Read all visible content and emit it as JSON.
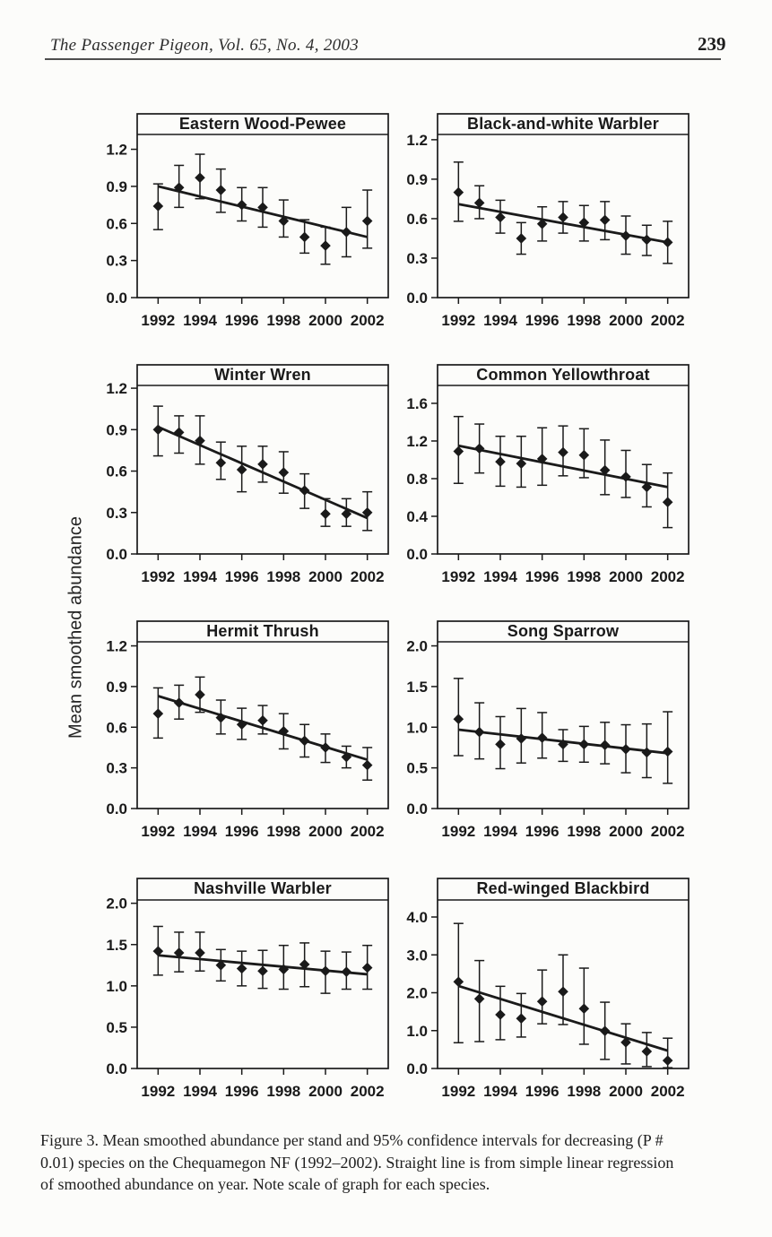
{
  "header": {
    "journal": "The Passenger Pigeon, Vol. 65, No. 4, 2003",
    "page_number": "239"
  },
  "y_axis_label": "Mean smoothed abundance",
  "caption": {
    "lines": [
      "Figure 3. Mean smoothed abundance per stand and 95% confidence intervals for decreasing (P #",
      "0.01) species on the Chequamegon NF (1992–2002). Straight line is from simple linear regression",
      "of smoothed abundance on year. Note scale of graph for each species."
    ]
  },
  "ink_color": "#1a1a1a",
  "x_axis": {
    "xlim": [
      1991,
      2003
    ],
    "ticks": [
      {
        "v": 1992,
        "label": "1992"
      },
      {
        "v": 1994,
        "label": "1994"
      },
      {
        "v": 1996,
        "label": "1996"
      },
      {
        "v": 1998,
        "label": "1998"
      },
      {
        "v": 2000,
        "label": "2000"
      },
      {
        "v": 2002,
        "label": "2002"
      }
    ]
  },
  "chart_data": [
    {
      "type": "scatter",
      "title": "Eastern Wood-Pewee",
      "x": [
        1992,
        1993,
        1994,
        1995,
        1996,
        1997,
        1998,
        1999,
        2000,
        2001,
        2002
      ],
      "values": [
        0.74,
        0.89,
        0.97,
        0.87,
        0.75,
        0.73,
        0.62,
        0.49,
        0.42,
        0.53,
        0.62
      ],
      "ci_low": [
        0.55,
        0.73,
        0.8,
        0.69,
        0.62,
        0.57,
        0.49,
        0.36,
        0.27,
        0.33,
        0.4
      ],
      "ci_high": [
        0.92,
        1.07,
        1.16,
        1.04,
        0.89,
        0.89,
        0.79,
        0.63,
        0.57,
        0.73,
        0.87
      ],
      "trend": {
        "x": [
          1992,
          2002
        ],
        "y": [
          0.9,
          0.49
        ]
      },
      "ylim": [
        0,
        1.32
      ],
      "y_ticks": [
        {
          "v": 0,
          "label": "0.0"
        },
        {
          "v": 0.3,
          "label": "0.3"
        },
        {
          "v": 0.6,
          "label": "0.6"
        },
        {
          "v": 0.9,
          "label": "0.9"
        },
        {
          "v": 1.2,
          "label": "1.2"
        }
      ]
    },
    {
      "type": "scatter",
      "title": "Black-and-white Warbler",
      "x": [
        1992,
        1993,
        1994,
        1995,
        1996,
        1997,
        1998,
        1999,
        2000,
        2001,
        2002
      ],
      "values": [
        0.8,
        0.72,
        0.61,
        0.45,
        0.56,
        0.61,
        0.57,
        0.59,
        0.47,
        0.44,
        0.42
      ],
      "ci_low": [
        0.58,
        0.6,
        0.49,
        0.33,
        0.43,
        0.49,
        0.43,
        0.44,
        0.33,
        0.32,
        0.26
      ],
      "ci_high": [
        1.03,
        0.85,
        0.74,
        0.57,
        0.69,
        0.73,
        0.7,
        0.73,
        0.62,
        0.55,
        0.58
      ],
      "trend": {
        "x": [
          1992,
          2002
        ],
        "y": [
          0.71,
          0.42
        ]
      },
      "ylim": [
        0,
        1.24
      ],
      "y_ticks": [
        {
          "v": 0,
          "label": "0.0"
        },
        {
          "v": 0.3,
          "label": "0.3"
        },
        {
          "v": 0.6,
          "label": "0.6"
        },
        {
          "v": 0.9,
          "label": "0.9"
        },
        {
          "v": 1.2,
          "label": "1.2"
        }
      ]
    },
    {
      "type": "scatter",
      "title": "Winter Wren",
      "x": [
        1992,
        1993,
        1994,
        1995,
        1996,
        1997,
        1998,
        1999,
        2000,
        2001,
        2002
      ],
      "values": [
        0.9,
        0.88,
        0.82,
        0.66,
        0.61,
        0.65,
        0.59,
        0.46,
        0.29,
        0.29,
        0.3
      ],
      "ci_low": [
        0.71,
        0.73,
        0.65,
        0.54,
        0.45,
        0.52,
        0.44,
        0.33,
        0.2,
        0.2,
        0.17
      ],
      "ci_high": [
        1.07,
        1.0,
        1.0,
        0.81,
        0.78,
        0.78,
        0.74,
        0.58,
        0.4,
        0.4,
        0.45
      ],
      "trend": {
        "x": [
          1992,
          2002
        ],
        "y": [
          0.92,
          0.26
        ]
      },
      "ylim": [
        0,
        1.22
      ],
      "y_ticks": [
        {
          "v": 0,
          "label": "0.0"
        },
        {
          "v": 0.3,
          "label": "0.3"
        },
        {
          "v": 0.6,
          "label": "0.6"
        },
        {
          "v": 0.9,
          "label": "0.9"
        },
        {
          "v": 1.2,
          "label": "1.2"
        }
      ]
    },
    {
      "type": "scatter",
      "title": "Common Yellowthroat",
      "x": [
        1992,
        1993,
        1994,
        1995,
        1996,
        1997,
        1998,
        1999,
        2000,
        2001,
        2002
      ],
      "values": [
        1.09,
        1.12,
        0.98,
        0.96,
        1.01,
        1.08,
        1.05,
        0.89,
        0.82,
        0.71,
        0.55
      ],
      "ci_low": [
        0.75,
        0.86,
        0.72,
        0.71,
        0.73,
        0.83,
        0.81,
        0.63,
        0.6,
        0.5,
        0.28
      ],
      "ci_high": [
        1.46,
        1.38,
        1.25,
        1.25,
        1.34,
        1.36,
        1.33,
        1.21,
        1.1,
        0.95,
        0.86
      ],
      "trend": {
        "x": [
          1992,
          2002
        ],
        "y": [
          1.15,
          0.71
        ]
      },
      "ylim": [
        0,
        1.79
      ],
      "y_ticks": [
        {
          "v": 0,
          "label": "0.0"
        },
        {
          "v": 0.4,
          "label": "0.4"
        },
        {
          "v": 0.8,
          "label": "0.8"
        },
        {
          "v": 1.2,
          "label": "1.2"
        },
        {
          "v": 1.6,
          "label": "1.6"
        }
      ]
    },
    {
      "type": "scatter",
      "title": "Hermit Thrush",
      "x": [
        1992,
        1993,
        1994,
        1995,
        1996,
        1997,
        1998,
        1999,
        2000,
        2001,
        2002
      ],
      "values": [
        0.7,
        0.78,
        0.84,
        0.67,
        0.62,
        0.65,
        0.57,
        0.5,
        0.45,
        0.38,
        0.32
      ],
      "ci_low": [
        0.52,
        0.66,
        0.71,
        0.55,
        0.51,
        0.55,
        0.44,
        0.38,
        0.34,
        0.3,
        0.21
      ],
      "ci_high": [
        0.89,
        0.91,
        0.97,
        0.8,
        0.74,
        0.76,
        0.7,
        0.62,
        0.55,
        0.46,
        0.45
      ],
      "trend": {
        "x": [
          1992,
          2002
        ],
        "y": [
          0.83,
          0.36
        ]
      },
      "ylim": [
        0,
        1.23
      ],
      "y_ticks": [
        {
          "v": 0,
          "label": "0.0"
        },
        {
          "v": 0.3,
          "label": "0.3"
        },
        {
          "v": 0.6,
          "label": "0.6"
        },
        {
          "v": 0.9,
          "label": "0.9"
        },
        {
          "v": 1.2,
          "label": "1.2"
        }
      ]
    },
    {
      "type": "scatter",
      "title": "Song Sparrow",
      "x": [
        1992,
        1993,
        1994,
        1995,
        1996,
        1997,
        1998,
        1999,
        2000,
        2001,
        2002
      ],
      "values": [
        1.1,
        0.94,
        0.79,
        0.86,
        0.87,
        0.79,
        0.79,
        0.78,
        0.73,
        0.69,
        0.7
      ],
      "ci_low": [
        0.65,
        0.61,
        0.49,
        0.56,
        0.62,
        0.58,
        0.57,
        0.55,
        0.44,
        0.38,
        0.31
      ],
      "ci_high": [
        1.6,
        1.3,
        1.13,
        1.23,
        1.18,
        0.97,
        1.01,
        1.06,
        1.03,
        1.04,
        1.19
      ],
      "trend": {
        "x": [
          1992,
          2002
        ],
        "y": [
          0.97,
          0.68
        ]
      },
      "ylim": [
        0,
        2.05
      ],
      "y_ticks": [
        {
          "v": 0,
          "label": "0.0"
        },
        {
          "v": 0.5,
          "label": "0.5"
        },
        {
          "v": 1.0,
          "label": "1.0"
        },
        {
          "v": 1.5,
          "label": "1.5"
        },
        {
          "v": 2.0,
          "label": "2.0"
        }
      ]
    },
    {
      "type": "scatter",
      "title": "Nashville Warbler",
      "x": [
        1992,
        1993,
        1994,
        1995,
        1996,
        1997,
        1998,
        1999,
        2000,
        2001,
        2002
      ],
      "values": [
        1.42,
        1.4,
        1.4,
        1.25,
        1.21,
        1.18,
        1.2,
        1.26,
        1.18,
        1.17,
        1.22
      ],
      "ci_low": [
        1.13,
        1.17,
        1.18,
        1.06,
        1.0,
        0.97,
        0.96,
        0.99,
        0.91,
        0.96,
        0.96
      ],
      "ci_high": [
        1.72,
        1.65,
        1.65,
        1.44,
        1.42,
        1.43,
        1.49,
        1.52,
        1.42,
        1.41,
        1.49
      ],
      "trend": {
        "x": [
          1992,
          2002
        ],
        "y": [
          1.37,
          1.14
        ]
      },
      "ylim": [
        0,
        2.04
      ],
      "y_ticks": [
        {
          "v": 0,
          "label": "0.0"
        },
        {
          "v": 0.5,
          "label": "0.5"
        },
        {
          "v": 1.0,
          "label": "1.0"
        },
        {
          "v": 1.5,
          "label": "1.5"
        },
        {
          "v": 2.0,
          "label": "2.0"
        }
      ]
    },
    {
      "type": "scatter",
      "title": "Red-winged Blackbird",
      "x": [
        1992,
        1993,
        1994,
        1995,
        1996,
        1997,
        1998,
        1999,
        2000,
        2001,
        2002
      ],
      "values": [
        2.29,
        1.84,
        1.42,
        1.32,
        1.77,
        2.03,
        1.58,
        0.99,
        0.69,
        0.45,
        0.21
      ],
      "ci_low": [
        0.68,
        0.71,
        0.76,
        0.83,
        1.18,
        1.16,
        0.64,
        0.24,
        0.12,
        0.05,
        0.02
      ],
      "ci_high": [
        3.83,
        2.85,
        2.17,
        1.98,
        2.6,
        3.0,
        2.65,
        1.75,
        1.18,
        0.95,
        0.8
      ],
      "trend": {
        "x": [
          1992,
          2002
        ],
        "y": [
          2.18,
          0.47
        ]
      },
      "ylim": [
        0,
        4.45
      ],
      "y_ticks": [
        {
          "v": 0,
          "label": "0.0"
        },
        {
          "v": 1.0,
          "label": "1.0"
        },
        {
          "v": 2.0,
          "label": "2.0"
        },
        {
          "v": 3.0,
          "label": "3.0"
        },
        {
          "v": 4.0,
          "label": "4.0"
        }
      ]
    }
  ]
}
